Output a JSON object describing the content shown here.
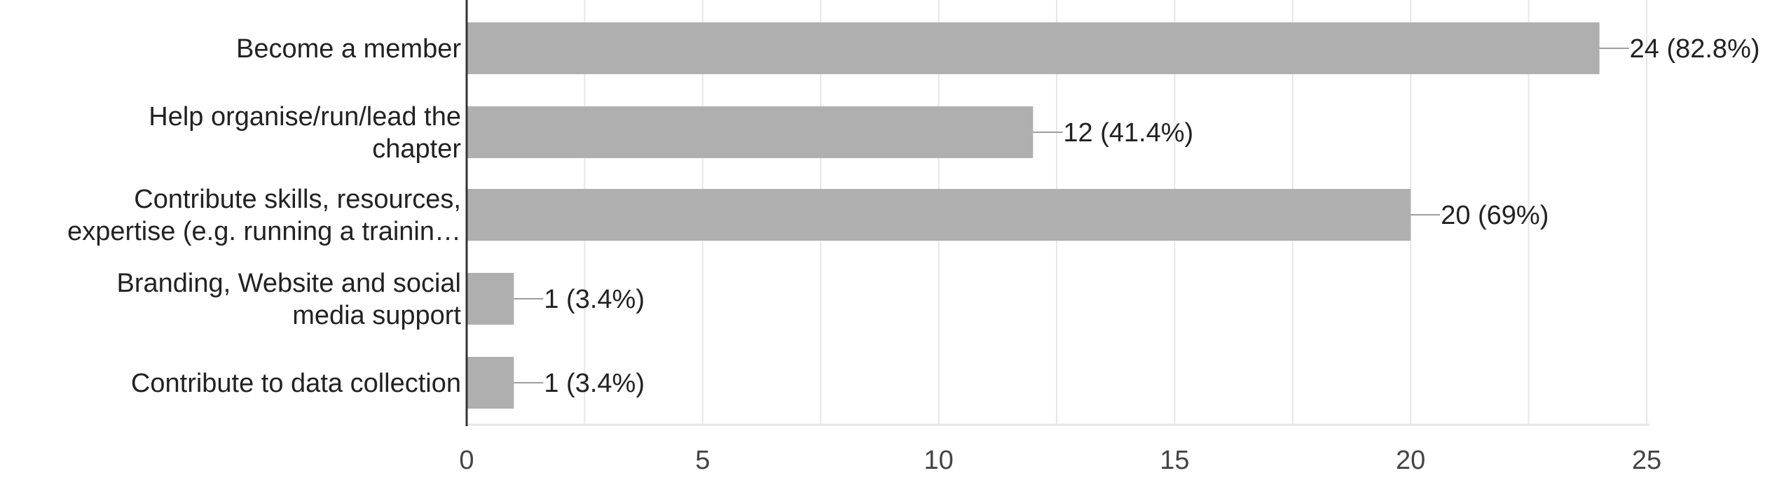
{
  "chart_data": {
    "type": "bar",
    "orientation": "horizontal",
    "categories": [
      [
        "Become a member"
      ],
      [
        "Help organise/run/lead the",
        "chapter"
      ],
      [
        "Contribute skills, resources,",
        "expertise (e.g. running a trainin…"
      ],
      [
        "Branding, Website and social",
        "media support"
      ],
      [
        "Contribute to data collection"
      ]
    ],
    "values": [
      24,
      12,
      20,
      1,
      1
    ],
    "data_labels": [
      "24 (82.8%)",
      "12 (41.4%)",
      "20 (69%)",
      "1 (3.4%)",
      "1 (3.4%)"
    ],
    "xlim": [
      0,
      25
    ],
    "xticks": [
      0,
      5,
      10,
      15,
      20,
      25
    ],
    "grid": true,
    "minor_grid": true,
    "colors": {
      "bar": "#b0afb0",
      "connector": "#9e9e9e",
      "grid": "#e7e7e7",
      "axis": "#333333"
    }
  }
}
